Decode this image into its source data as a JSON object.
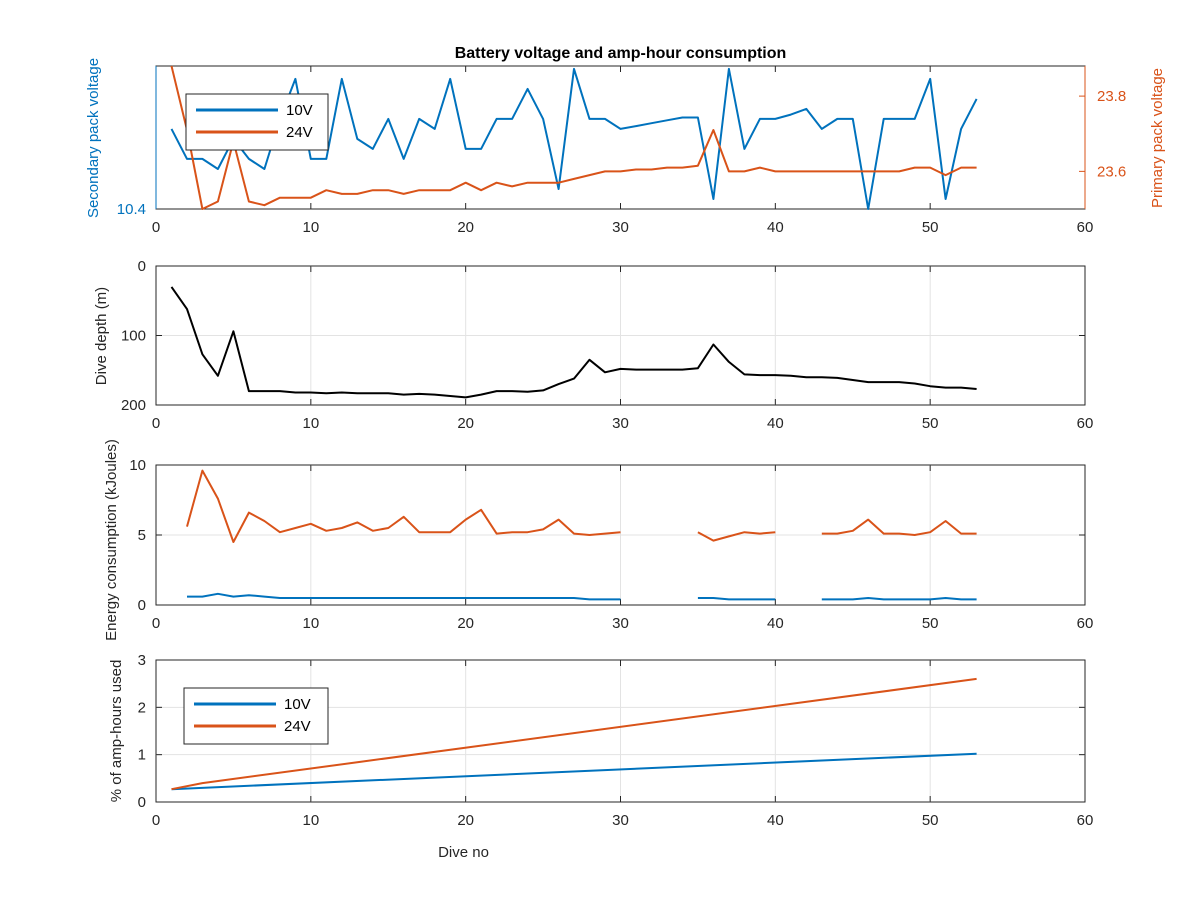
{
  "chart_data": [
    {
      "type": "line",
      "title": "Battery voltage and amp-hour consumption",
      "xlabel": "",
      "xlim": [
        0,
        60
      ],
      "xticks": [
        "0",
        "10",
        "20",
        "30",
        "40",
        "50",
        "60"
      ],
      "ylabel_left": "Secondary pack voltage",
      "yticks_left": [
        "10.4"
      ],
      "ylabel_right": "Primary pack voltage",
      "ylim_right": [
        23.5,
        23.88
      ],
      "yticks_right": [
        "23.6",
        "23.8"
      ],
      "grid": false,
      "legend": "top-left",
      "series": [
        {
          "name": "10V",
          "color": "#0072BD",
          "axis": "left",
          "x": [
            1,
            2,
            3,
            4,
            5,
            6,
            7,
            8,
            9,
            10,
            11,
            12,
            13,
            14,
            15,
            16,
            17,
            18,
            19,
            20,
            21,
            22,
            23,
            24,
            25,
            26,
            27,
            28,
            29,
            30,
            31,
            32,
            33,
            34,
            35,
            36,
            37,
            38,
            39,
            40,
            41,
            42,
            43,
            44,
            45,
            46,
            47,
            48,
            49,
            50,
            51,
            52,
            53
          ],
          "y": [
            10.456,
            10.435,
            10.435,
            10.428,
            10.449,
            10.435,
            10.428,
            10.463,
            10.491,
            10.435,
            10.435,
            10.491,
            10.449,
            10.442,
            10.463,
            10.435,
            10.463,
            10.456,
            10.491,
            10.442,
            10.442,
            10.463,
            10.463,
            10.484,
            10.463,
            10.414,
            10.498,
            10.463,
            10.463,
            10.456,
            10.458,
            10.46,
            10.462,
            10.464,
            10.464,
            10.407,
            10.498,
            10.442,
            10.463,
            10.463,
            10.466,
            10.47,
            10.456,
            10.463,
            10.463,
            10.4,
            10.463,
            10.463,
            10.463,
            10.491,
            10.407,
            10.456,
            10.477
          ]
        },
        {
          "name": "24V",
          "color": "#D95319",
          "axis": "right",
          "x": [
            1,
            2,
            3,
            4,
            5,
            6,
            7,
            8,
            9,
            10,
            11,
            12,
            13,
            14,
            15,
            16,
            17,
            18,
            19,
            20,
            21,
            22,
            23,
            24,
            25,
            26,
            27,
            28,
            29,
            30,
            31,
            32,
            33,
            34,
            35,
            36,
            37,
            38,
            39,
            40,
            41,
            42,
            43,
            44,
            45,
            46,
            47,
            48,
            49,
            50,
            51,
            52,
            53
          ],
          "y": [
            23.88,
            23.71,
            23.5,
            23.52,
            23.68,
            23.52,
            23.51,
            23.53,
            23.53,
            23.53,
            23.55,
            23.54,
            23.54,
            23.55,
            23.55,
            23.54,
            23.55,
            23.55,
            23.55,
            23.57,
            23.55,
            23.57,
            23.56,
            23.57,
            23.57,
            23.57,
            23.58,
            23.59,
            23.6,
            23.6,
            23.605,
            23.605,
            23.61,
            23.61,
            23.615,
            23.71,
            23.6,
            23.6,
            23.61,
            23.6,
            23.6,
            23.6,
            23.6,
            23.6,
            23.6,
            23.6,
            23.6,
            23.6,
            23.61,
            23.61,
            23.59,
            23.61,
            23.61
          ]
        }
      ]
    },
    {
      "type": "line",
      "title": "",
      "xlabel": "",
      "ylabel": "Dive depth (m)",
      "xlim": [
        0,
        60
      ],
      "ylim": [
        0,
        200
      ],
      "y_reversed": true,
      "xticks": [
        "0",
        "10",
        "20",
        "30",
        "40",
        "50",
        "60"
      ],
      "yticks": [
        "0",
        "100",
        "200"
      ],
      "grid": true,
      "series": [
        {
          "color": "#000000",
          "x": [
            1,
            2,
            3,
            4,
            5,
            6,
            7,
            8,
            9,
            10,
            11,
            12,
            13,
            14,
            15,
            16,
            17,
            18,
            19,
            20,
            21,
            22,
            23,
            24,
            25,
            26,
            27,
            28,
            29,
            30,
            31,
            32,
            33,
            34,
            35,
            36,
            37,
            38,
            39,
            40,
            41,
            42,
            43,
            44,
            45,
            46,
            47,
            48,
            49,
            50,
            51,
            52,
            53
          ],
          "y": [
            30,
            62,
            127,
            158,
            94,
            180,
            180,
            180,
            182,
            182,
            183,
            182,
            183,
            183,
            183,
            185,
            184,
            185,
            187,
            189,
            185,
            180,
            180,
            181,
            179,
            170,
            162,
            135,
            153,
            148,
            149,
            149,
            149,
            149,
            147,
            113,
            138,
            156,
            157,
            157,
            158,
            160,
            160,
            161,
            164,
            167,
            167,
            167,
            169,
            173,
            175,
            175,
            177
          ]
        }
      ]
    },
    {
      "type": "line",
      "title": "",
      "xlabel": "",
      "ylabel": "Energy consumption (kJoules)",
      "xlim": [
        0,
        60
      ],
      "ylim": [
        0,
        10
      ],
      "xticks": [
        "0",
        "10",
        "20",
        "30",
        "40",
        "50",
        "60"
      ],
      "yticks": [
        "0",
        "5",
        "10"
      ],
      "grid": true,
      "series": [
        {
          "color": "#D95319",
          "x": [
            2,
            3,
            4,
            5,
            6,
            7,
            8,
            9,
            10,
            11,
            12,
            13,
            14,
            15,
            16,
            17,
            18,
            19,
            20,
            21,
            22,
            23,
            24,
            25,
            26,
            27,
            28,
            29,
            30,
            null,
            35,
            36,
            37,
            38,
            39,
            40,
            null,
            43,
            44,
            45,
            46,
            47,
            48,
            49,
            50,
            51,
            52,
            53
          ],
          "y": [
            5.6,
            9.6,
            7.6,
            4.5,
            6.6,
            6,
            5.2,
            5.5,
            5.8,
            5.3,
            5.5,
            5.9,
            5.3,
            5.5,
            6.3,
            5.2,
            5.2,
            5.2,
            6.1,
            6.8,
            5.1,
            5.2,
            5.2,
            5.4,
            6.1,
            5.1,
            5,
            5.1,
            5.2,
            null,
            5.2,
            4.6,
            4.9,
            5.2,
            5.1,
            5.2,
            null,
            5.1,
            5.1,
            5.3,
            6.1,
            5.1,
            5.1,
            5,
            5.2,
            6,
            5.1,
            5.1
          ]
        },
        {
          "color": "#0072BD",
          "x": [
            2,
            3,
            4,
            5,
            6,
            7,
            8,
            9,
            10,
            11,
            12,
            13,
            14,
            15,
            16,
            17,
            18,
            19,
            20,
            21,
            22,
            23,
            24,
            25,
            26,
            27,
            28,
            29,
            30,
            null,
            35,
            36,
            37,
            38,
            39,
            40,
            null,
            43,
            44,
            45,
            46,
            47,
            48,
            49,
            50,
            51,
            52,
            53
          ],
          "y": [
            0.6,
            0.6,
            0.8,
            0.6,
            0.7,
            0.6,
            0.5,
            0.5,
            0.5,
            0.5,
            0.5,
            0.5,
            0.5,
            0.5,
            0.5,
            0.5,
            0.5,
            0.5,
            0.5,
            0.5,
            0.5,
            0.5,
            0.5,
            0.5,
            0.5,
            0.5,
            0.4,
            0.4,
            0.4,
            null,
            0.5,
            0.5,
            0.4,
            0.4,
            0.4,
            0.4,
            null,
            0.4,
            0.4,
            0.4,
            0.5,
            0.4,
            0.4,
            0.4,
            0.4,
            0.5,
            0.4,
            0.4
          ]
        }
      ]
    },
    {
      "type": "line",
      "title": "",
      "xlabel": "Dive no",
      "ylabel": "% of amp-hours used",
      "xlim": [
        0,
        60
      ],
      "ylim": [
        0,
        3
      ],
      "xticks": [
        "0",
        "10",
        "20",
        "30",
        "40",
        "50",
        "60"
      ],
      "yticks": [
        "0",
        "1",
        "2",
        "3"
      ],
      "grid": true,
      "legend": "top-left",
      "series": [
        {
          "name": "10V",
          "color": "#0072BD",
          "x": [
            1,
            53
          ],
          "y": [
            0.27,
            1.02
          ]
        },
        {
          "name": "24V",
          "color": "#D95319",
          "x": [
            1,
            3,
            53
          ],
          "y": [
            0.27,
            0.4,
            2.6
          ]
        }
      ]
    }
  ]
}
